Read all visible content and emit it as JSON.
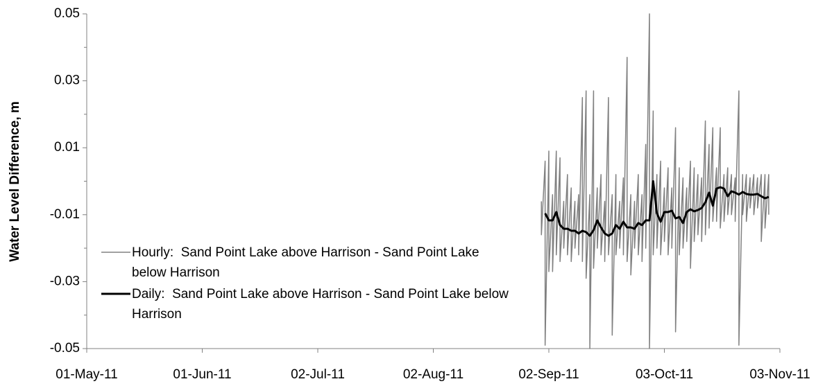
{
  "chart_data": {
    "type": "line",
    "ylabel": "Water Level Difference, m",
    "xlim": [
      "2011-05-01",
      "2011-11-03"
    ],
    "xticks": [
      {
        "value": "2011-05-01",
        "label": "01-May-11"
      },
      {
        "value": "2011-06-01",
        "label": "01-Jun-11"
      },
      {
        "value": "2011-07-02",
        "label": "02-Jul-11"
      },
      {
        "value": "2011-08-02",
        "label": "02-Aug-11"
      },
      {
        "value": "2011-09-02",
        "label": "02-Sep-11"
      },
      {
        "value": "2011-10-03",
        "label": "03-Oct-11"
      },
      {
        "value": "2011-11-03",
        "label": "03-Nov-11"
      }
    ],
    "ylim": [
      -0.05,
      0.05
    ],
    "yticks": [
      -0.05,
      -0.03,
      -0.01,
      0.01,
      0.03,
      0.05
    ],
    "yminorticks": [
      -0.04,
      -0.02,
      0,
      0.02,
      0.04
    ],
    "grid": false,
    "legend": "lower left",
    "series": [
      {
        "name": "Hourly:  Sand Point Lake above Harrison - Sand Point Lake below Harrison",
        "color": "#808080",
        "width": 1.5,
        "x": [
          "2011-08-31",
          "2011-08-31",
          "2011-09-01",
          "2011-09-01",
          "2011-09-02",
          "2011-09-02",
          "2011-09-03",
          "2011-09-03",
          "2011-09-04",
          "2011-09-04",
          "2011-09-05",
          "2011-09-05",
          "2011-09-06",
          "2011-09-06",
          "2011-09-07",
          "2011-09-07",
          "2011-09-08",
          "2011-09-08",
          "2011-09-09",
          "2011-09-09",
          "2011-09-10",
          "2011-09-10",
          "2011-09-11",
          "2011-09-11",
          "2011-09-12",
          "2011-09-12",
          "2011-09-13",
          "2011-09-13",
          "2011-09-14",
          "2011-09-14",
          "2011-09-15",
          "2011-09-15",
          "2011-09-16",
          "2011-09-16",
          "2011-09-17",
          "2011-09-17",
          "2011-09-18",
          "2011-09-18",
          "2011-09-19",
          "2011-09-19",
          "2011-09-20",
          "2011-09-20",
          "2011-09-21",
          "2011-09-21",
          "2011-09-22",
          "2011-09-22",
          "2011-09-23",
          "2011-09-23",
          "2011-09-24",
          "2011-09-24",
          "2011-09-25",
          "2011-09-25",
          "2011-09-26",
          "2011-09-26",
          "2011-09-27",
          "2011-09-27",
          "2011-09-28",
          "2011-09-28",
          "2011-09-29",
          "2011-09-29",
          "2011-09-30",
          "2011-09-30",
          "2011-10-01",
          "2011-10-01",
          "2011-10-02",
          "2011-10-02",
          "2011-10-03",
          "2011-10-03",
          "2011-10-04",
          "2011-10-04",
          "2011-10-05",
          "2011-10-05",
          "2011-10-06",
          "2011-10-06",
          "2011-10-07",
          "2011-10-07",
          "2011-10-08",
          "2011-10-08",
          "2011-10-09",
          "2011-10-09",
          "2011-10-10",
          "2011-10-10",
          "2011-10-11",
          "2011-10-11",
          "2011-10-12",
          "2011-10-12",
          "2011-10-13",
          "2011-10-13",
          "2011-10-14",
          "2011-10-14",
          "2011-10-15",
          "2011-10-15",
          "2011-10-16",
          "2011-10-16",
          "2011-10-17",
          "2011-10-17",
          "2011-10-18",
          "2011-10-18",
          "2011-10-19",
          "2011-10-19",
          "2011-10-20",
          "2011-10-20",
          "2011-10-21",
          "2011-10-21",
          "2011-10-22",
          "2011-10-22",
          "2011-10-23",
          "2011-10-23",
          "2011-10-24",
          "2011-10-24",
          "2011-10-25",
          "2011-10-25",
          "2011-10-26",
          "2011-10-26",
          "2011-10-27",
          "2011-10-27",
          "2011-10-28",
          "2011-10-28",
          "2011-10-29",
          "2011-10-29",
          "2011-10-30",
          "2011-10-30",
          "2011-10-31",
          "2011-10-31"
        ],
        "values": [
          -0.006,
          -0.016,
          0.006,
          -0.049,
          0.009,
          -0.027,
          -0.004,
          -0.027,
          0.009,
          -0.022,
          0.007,
          -0.024,
          -0.006,
          -0.02,
          0.002,
          -0.022,
          -0.002,
          -0.024,
          -0.006,
          -0.02,
          -0.004,
          -0.022,
          0.025,
          -0.024,
          0.027,
          -0.029,
          -0.004,
          -0.05,
          0.027,
          -0.026,
          -0.002,
          -0.02,
          0.002,
          -0.022,
          -0.006,
          -0.024,
          0.025,
          -0.022,
          -0.004,
          -0.046,
          0.002,
          -0.022,
          -0.006,
          -0.02,
          0.001,
          -0.022,
          0.037,
          -0.024,
          -0.004,
          -0.028,
          -0.006,
          -0.02,
          0.002,
          -0.022,
          -0.004,
          -0.024,
          0.011,
          -0.02,
          0.05,
          -0.05,
          0.021,
          -0.022,
          0.002,
          -0.02,
          0.006,
          -0.022,
          -0.002,
          -0.018,
          0.004,
          -0.022,
          -0.002,
          -0.02,
          0.016,
          -0.045,
          0.004,
          -0.022,
          0.001,
          -0.02,
          -0.002,
          -0.018,
          0.006,
          -0.026,
          0.004,
          -0.018,
          0.002,
          -0.016,
          0.001,
          -0.018,
          0.018,
          -0.016,
          0.011,
          -0.014,
          0.016,
          -0.012,
          0.004,
          -0.012,
          0.016,
          -0.014,
          0.002,
          -0.012,
          0.004,
          -0.01,
          0.002,
          -0.01,
          0.001,
          -0.012,
          0.027,
          -0.049,
          0.002,
          -0.01,
          0.002,
          -0.012,
          0.001,
          -0.008,
          0.002,
          -0.01,
          0.001,
          -0.008,
          0.002,
          -0.018,
          0.002,
          -0.014,
          0.002,
          -0.01
        ]
      },
      {
        "name": "Daily:  Sand Point Lake above Harrison - Sand Point Lake below Harrison",
        "color": "#000000",
        "width": 3,
        "x": [
          "2011-09-01",
          "2011-09-02",
          "2011-09-03",
          "2011-09-04",
          "2011-09-05",
          "2011-09-06",
          "2011-09-07",
          "2011-09-08",
          "2011-09-09",
          "2011-09-10",
          "2011-09-11",
          "2011-09-12",
          "2011-09-13",
          "2011-09-14",
          "2011-09-15",
          "2011-09-16",
          "2011-09-17",
          "2011-09-18",
          "2011-09-19",
          "2011-09-20",
          "2011-09-21",
          "2011-09-22",
          "2011-09-23",
          "2011-09-24",
          "2011-09-25",
          "2011-09-26",
          "2011-09-27",
          "2011-09-28",
          "2011-09-29",
          "2011-09-30",
          "2011-10-01",
          "2011-10-02",
          "2011-10-03",
          "2011-10-04",
          "2011-10-05",
          "2011-10-06",
          "2011-10-07",
          "2011-10-08",
          "2011-10-09",
          "2011-10-10",
          "2011-10-11",
          "2011-10-12",
          "2011-10-13",
          "2011-10-14",
          "2011-10-15",
          "2011-10-16",
          "2011-10-17",
          "2011-10-18",
          "2011-10-19",
          "2011-10-20",
          "2011-10-21",
          "2011-10-22",
          "2011-10-23",
          "2011-10-24",
          "2011-10-25",
          "2011-10-26",
          "2011-10-27",
          "2011-10-28",
          "2011-10-29",
          "2011-10-30",
          "2011-10-31"
        ],
        "values": [
          -0.0096,
          -0.0117,
          -0.0117,
          -0.0092,
          -0.0131,
          -0.0142,
          -0.0142,
          -0.0148,
          -0.0148,
          -0.0156,
          -0.0148,
          -0.0152,
          -0.0163,
          -0.0146,
          -0.0117,
          -0.0138,
          -0.0156,
          -0.0163,
          -0.0156,
          -0.0131,
          -0.0142,
          -0.0121,
          -0.0138,
          -0.0138,
          -0.0142,
          -0.0125,
          -0.0131,
          -0.0117,
          -0.0117,
          0.0,
          -0.0096,
          -0.0121,
          -0.0092,
          -0.0092,
          -0.0088,
          -0.0111,
          -0.0107,
          -0.0125,
          -0.0092,
          -0.0084,
          -0.009,
          -0.0086,
          -0.008,
          -0.0063,
          -0.0034,
          -0.0073,
          -0.0022,
          -0.0018,
          -0.0022,
          -0.0045,
          -0.003,
          -0.0034,
          -0.004,
          -0.0032,
          -0.0038,
          -0.004,
          -0.004,
          -0.0038,
          -0.0045,
          -0.0051,
          -0.0047
        ]
      }
    ]
  }
}
